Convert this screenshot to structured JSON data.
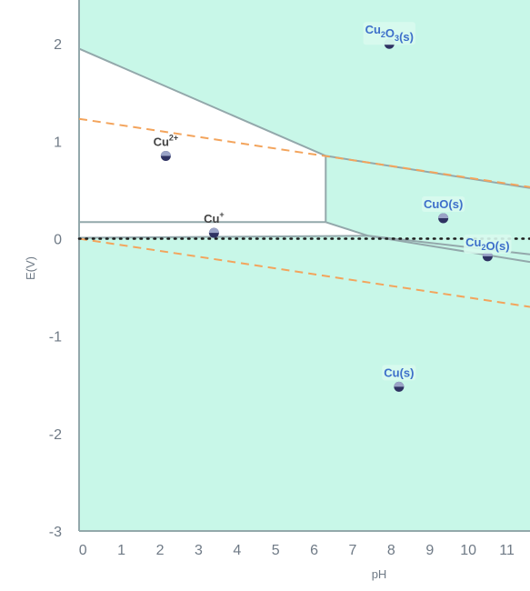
{
  "chart_data": {
    "type": "scatter",
    "title": "",
    "xlabel": "pH",
    "ylabel": "E(V)",
    "xlim": [
      -0.1,
      11.6
    ],
    "ylim": [
      -3,
      2.45
    ],
    "x_ticks": [
      "0",
      "1",
      "2",
      "3",
      "4",
      "5",
      "6",
      "7",
      "8",
      "9",
      "10",
      "11"
    ],
    "y_ticks": [
      "2",
      "1",
      "0",
      "-1",
      "-2",
      "-3"
    ],
    "grid": false,
    "colors": {
      "solid_region": "#c8f7e8",
      "aqueous_region": "#ffffff",
      "boundary": "#93a8ab",
      "water_line": "#f3a45c",
      "neutral_line": "#1c1c1c",
      "point": "#2e3262",
      "solid_label": "#3d6fca",
      "aqueous_label": "#444444",
      "tick_text": "#6f7a86"
    },
    "regions": {
      "cu2_aqueous": [
        [
          -0.1,
          1.95
        ],
        [
          6.3,
          0.85
        ],
        [
          6.3,
          0.17
        ],
        [
          -0.1,
          0.17
        ]
      ],
      "cu_plus_aqueous": [
        [
          -0.1,
          0.17
        ],
        [
          6.3,
          0.17
        ],
        [
          7.4,
          0.03
        ],
        [
          -0.1,
          0.01
        ]
      ]
    },
    "boundaries": [
      [
        [
          -0.1,
          1.95
        ],
        [
          6.3,
          0.85
        ],
        [
          11.6,
          0.52
        ]
      ],
      [
        [
          6.3,
          0.85
        ],
        [
          6.3,
          0.17
        ]
      ],
      [
        [
          -0.1,
          0.17
        ],
        [
          6.3,
          0.17
        ]
      ],
      [
        [
          6.3,
          0.17
        ],
        [
          7.4,
          0.03
        ],
        [
          11.6,
          -0.24
        ]
      ],
      [
        [
          -0.1,
          0.01
        ],
        [
          7.4,
          0.03
        ],
        [
          11.6,
          -0.16
        ]
      ]
    ],
    "water_lines": [
      [
        [
          -0.1,
          1.23
        ],
        [
          11.6,
          0.53
        ]
      ],
      [
        [
          -0.1,
          0.0
        ],
        [
          11.6,
          -0.7
        ]
      ]
    ],
    "neutral_line": [
      [
        -0.1,
        0.0
      ],
      [
        11.6,
        0.0
      ]
    ],
    "points": [
      {
        "base": "Cu",
        "sub": "2",
        "base2": "O",
        "sub2": "3",
        "phase": "(s)",
        "sup": "",
        "x": 7.95,
        "y": 2.0,
        "kind": "solid"
      },
      {
        "base": "Cu",
        "sub": "",
        "base2": "",
        "sub2": "",
        "phase": "",
        "sup": "2+",
        "x": 2.15,
        "y": 0.85,
        "kind": "aqueous"
      },
      {
        "base": "Cu",
        "sub": "",
        "base2": "",
        "sub2": "",
        "phase": "",
        "sup": "+",
        "x": 3.4,
        "y": 0.06,
        "kind": "aqueous"
      },
      {
        "base": "CuO",
        "sub": "",
        "base2": "",
        "sub2": "",
        "phase": "(s)",
        "sup": "",
        "x": 9.35,
        "y": 0.21,
        "kind": "solid"
      },
      {
        "base": "Cu",
        "sub": "2",
        "base2": "O",
        "sub2": "",
        "phase": "(s)",
        "sup": "",
        "x": 10.5,
        "y": -0.18,
        "kind": "solid"
      },
      {
        "base": "Cu",
        "sub": "",
        "base2": "",
        "sub2": "",
        "phase": "(s)",
        "sup": "",
        "x": 8.2,
        "y": -1.52,
        "kind": "solid"
      }
    ]
  }
}
